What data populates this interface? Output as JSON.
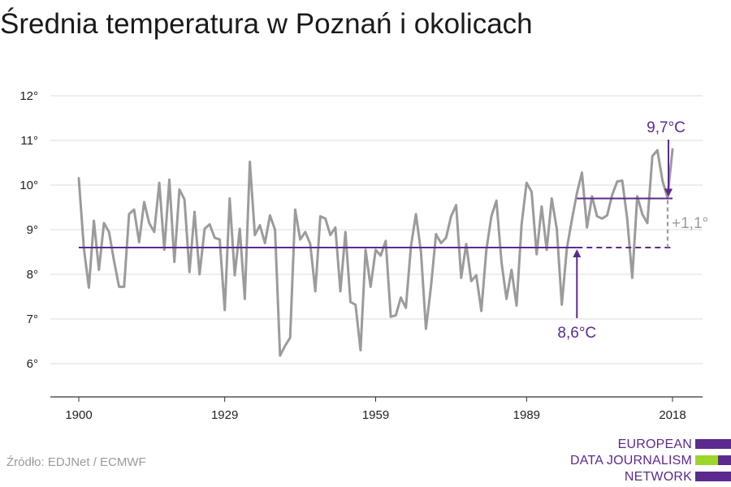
{
  "title": "Średnia temperatura w Poznań i okolicach",
  "source": "Źródło: EDJNet / ECMWF",
  "logo": {
    "line1": "EUROPEAN",
    "line2": "DATA JOURNALISM",
    "line3": "NETWORK"
  },
  "colors": {
    "line": "#9b9b9b",
    "accent": "#5c2a8f",
    "diff": "#9b9b9b",
    "grid": "#dddddd",
    "green": "#9dd62a"
  },
  "chart_data": {
    "type": "line",
    "title": "Średnia temperatura w Poznań i okolicach",
    "xlabel": "",
    "ylabel": "",
    "xlim": [
      1900,
      2018
    ],
    "ylim": [
      5.3,
      12.3
    ],
    "grid": true,
    "x_ticks": [
      1900,
      1929,
      1959,
      1989,
      2018
    ],
    "x_tick_labels": [
      "1900",
      "1929",
      "1959",
      "1989",
      "2018"
    ],
    "y_ticks": [
      6,
      7,
      8,
      9,
      10,
      11,
      12
    ],
    "y_tick_labels": [
      "6°",
      "7°",
      "8°",
      "9°",
      "10°",
      "11°",
      "12°"
    ],
    "series": [
      {
        "x": [
          1900,
          1901,
          1902,
          1903,
          1904,
          1905,
          1906,
          1907,
          1908,
          1909,
          1910,
          1911,
          1912,
          1913,
          1914,
          1915,
          1916,
          1917,
          1918,
          1919,
          1920,
          1921,
          1922,
          1923,
          1924,
          1925,
          1926,
          1927,
          1928,
          1929,
          1930,
          1931,
          1932,
          1933,
          1934,
          1935,
          1936,
          1937,
          1938,
          1939,
          1940,
          1941,
          1942,
          1943,
          1944,
          1945,
          1946,
          1947,
          1948,
          1949,
          1950,
          1951,
          1952,
          1953,
          1954,
          1955,
          1956,
          1957,
          1958,
          1959,
          1960,
          1961,
          1962,
          1963,
          1964,
          1965,
          1966,
          1967,
          1968,
          1969,
          1970,
          1971,
          1972,
          1973,
          1974,
          1975,
          1976,
          1977,
          1978,
          1979,
          1980,
          1981,
          1982,
          1983,
          1984,
          1985,
          1986,
          1987,
          1988,
          1989,
          1990,
          1991,
          1992,
          1993,
          1994,
          1995,
          1996,
          1997,
          1998,
          1999,
          2000,
          2001,
          2002,
          2003,
          2004,
          2005,
          2006,
          2007,
          2008,
          2009,
          2010,
          2011,
          2012,
          2013,
          2014,
          2015,
          2016,
          2017,
          2018
        ],
        "values": [
          10.15,
          8.6,
          7.7,
          9.2,
          8.1,
          9.15,
          8.95,
          8.3,
          7.72,
          7.72,
          9.35,
          9.45,
          8.72,
          9.62,
          9.15,
          8.95,
          10.05,
          8.55,
          10.12,
          8.28,
          9.9,
          9.68,
          8.05,
          9.4,
          8.0,
          9.02,
          9.12,
          8.82,
          8.78,
          7.2,
          9.7,
          7.98,
          9.02,
          7.45,
          10.52,
          8.88,
          9.1,
          8.7,
          9.32,
          9.0,
          6.18,
          6.4,
          6.58,
          9.45,
          8.78,
          8.95,
          8.68,
          7.62,
          9.3,
          9.25,
          8.88,
          9.05,
          7.62,
          8.95,
          7.38,
          7.32,
          6.3,
          8.55,
          7.72,
          8.55,
          8.42,
          8.75,
          7.05,
          7.08,
          7.48,
          7.25,
          8.62,
          9.35,
          8.5,
          6.78,
          7.72,
          8.9,
          8.7,
          8.82,
          9.3,
          9.55,
          7.92,
          8.68,
          7.85,
          7.98,
          7.18,
          8.55,
          9.3,
          9.65,
          8.28,
          7.45,
          8.1,
          7.3,
          9.12,
          10.05,
          9.85,
          8.45,
          9.52,
          8.55,
          9.7,
          9.02,
          7.32,
          8.58,
          9.22,
          9.82,
          10.28,
          9.05,
          9.75,
          9.3,
          9.25,
          9.32,
          9.78,
          10.08,
          10.1,
          9.25,
          7.92,
          9.75,
          9.35,
          9.15,
          10.65,
          10.78,
          10.1,
          9.72,
          10.8
        ]
      }
    ],
    "annotations": [
      {
        "text": "8,6°C",
        "value": 8.6,
        "from_year": 1900,
        "to_year": 2018
      },
      {
        "text": "9,7°C",
        "value": 9.7,
        "from_year": 1999,
        "to_year": 2018
      },
      {
        "text": "+1,1°"
      }
    ]
  }
}
